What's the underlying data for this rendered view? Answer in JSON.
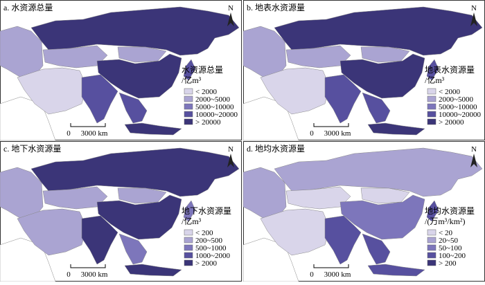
{
  "legend_colors": [
    "#d9d5ea",
    "#aaa4d2",
    "#7d76bb",
    "#57509f",
    "#3b3578"
  ],
  "panels": [
    {
      "title": "a. 水资源总量",
      "legend_title": "水资源总量",
      "legend_unit": "/亿m³",
      "legend_items": [
        "< 2000",
        "2000~5000",
        "5000~10000",
        "10000~20000",
        "> 20000"
      ],
      "scale_zero": "0",
      "scale": "3000 km",
      "north": "N"
    },
    {
      "title": "b. 地表水资源量",
      "legend_title": "地表水资源量",
      "legend_unit": "/亿m³",
      "legend_items": [
        "< 2000",
        "2000~5000",
        "5000~10000",
        "10000~20000",
        "> 20000"
      ],
      "scale_zero": "0",
      "scale": "3000 km",
      "north": "N"
    },
    {
      "title": "c. 地下水资源量",
      "legend_title": "地下水资源量",
      "legend_unit": "/亿m³",
      "legend_items": [
        "< 200",
        "200~500",
        "500~1000",
        "1000~2000",
        "> 2000"
      ],
      "scale_zero": "0",
      "scale": "3000 km",
      "north": "N"
    },
    {
      "title": "d. 地均水资源量",
      "legend_title": "地均水资源量",
      "legend_unit": "/(万m³/km²)",
      "legend_items": [
        "< 20",
        "20~50",
        "50~100",
        "100~200",
        "> 200"
      ],
      "scale_zero": "0",
      "scale": "3000 km",
      "north": "N"
    }
  ]
}
